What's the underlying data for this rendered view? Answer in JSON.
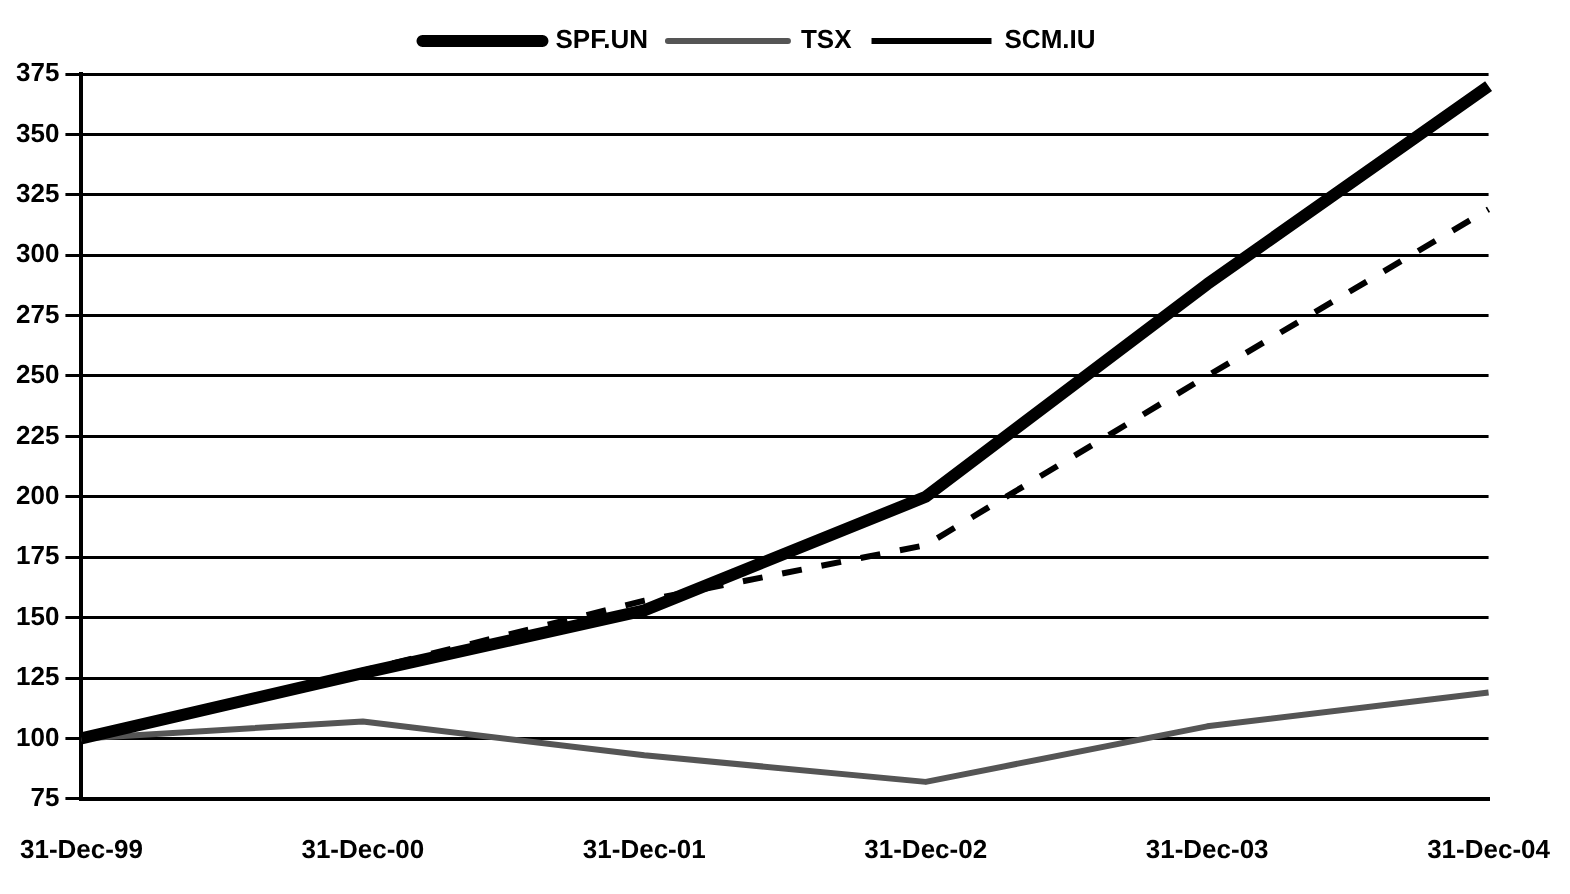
{
  "chart_data": {
    "type": "line",
    "categories": [
      "31-Dec-99",
      "31-Dec-00",
      "31-Dec-01",
      "31-Dec-02",
      "31-Dec-03",
      "31-Dec-04"
    ],
    "series": [
      {
        "name": "SPF.UN",
        "color": "#000000",
        "values": [
          100,
          127,
          153,
          200,
          288,
          370
        ],
        "line_style": "solid"
      },
      {
        "name": "TSX",
        "color": "#555555",
        "values": [
          100,
          107,
          93,
          82,
          105,
          119
        ],
        "line_style": "solid"
      },
      {
        "name": "SCM.IU",
        "color": "#000000",
        "values": [
          100,
          128,
          157,
          180,
          250,
          319
        ],
        "line_style": "dashed"
      }
    ],
    "ylim": [
      75,
      375
    ],
    "yticks": [
      75,
      100,
      125,
      150,
      175,
      200,
      225,
      250,
      275,
      300,
      325,
      350,
      375
    ],
    "grid": "y",
    "legend": "top",
    "marker": "none"
  }
}
